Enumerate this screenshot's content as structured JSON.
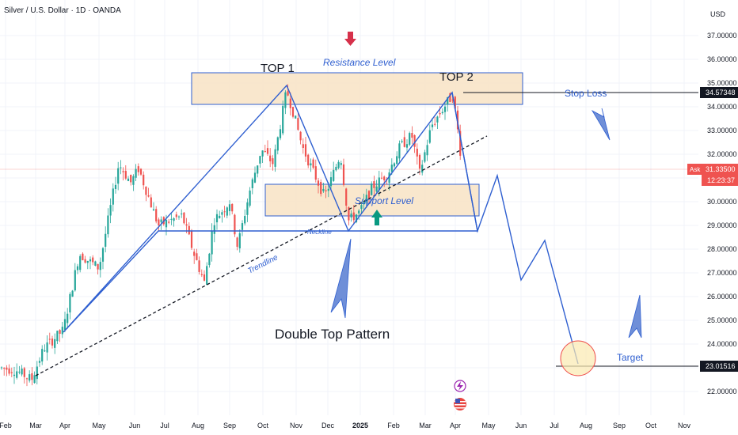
{
  "header": {
    "title": "Silver / U.S. Dollar · 1D · OANDA",
    "currency": "USD"
  },
  "chart_data": {
    "type": "candlestick",
    "y_ticks": [
      "37.00000",
      "36.00000",
      "35.00000",
      "34.00000",
      "33.00000",
      "32.00000",
      "31.00000",
      "30.00000",
      "29.00000",
      "28.00000",
      "27.00000",
      "26.00000",
      "25.00000",
      "24.00000",
      "23.00000",
      "22.00000"
    ],
    "ylim": [
      21.3,
      37.7
    ],
    "x_ticks": [
      "Feb",
      "Mar",
      "Apr",
      "May",
      "Jun",
      "Jul",
      "Aug",
      "Sep",
      "Oct",
      "Nov",
      "Dec",
      "2025",
      "Feb",
      "Mar",
      "Apr",
      "May",
      "Jun",
      "Jul",
      "Aug",
      "Sep",
      "Oct",
      "Nov"
    ],
    "price_labels": {
      "stop_loss_value": "34.57348",
      "ask_label": "Ask",
      "ask_value": "31.33500",
      "countdown": "12:23:37",
      "target_value": "23.01516"
    },
    "key_levels": {
      "stop_loss": 34.57348,
      "ask": 31.335,
      "target": 23.01516,
      "neckline": 28.75
    },
    "annotations": {
      "top1": "TOP 1",
      "top2": "TOP 2",
      "resistance": "Resistance Level",
      "support": "Support Level",
      "neckline": "Neckline",
      "trendline": "Trendline",
      "pattern": "Double Top Pattern",
      "stop_loss": "Stop Loss",
      "target": "Target"
    },
    "colors": {
      "up": "#26a69a",
      "down": "#ef5350",
      "drawing": "#2f5fd0",
      "zone": "#f8e3c4"
    }
  }
}
